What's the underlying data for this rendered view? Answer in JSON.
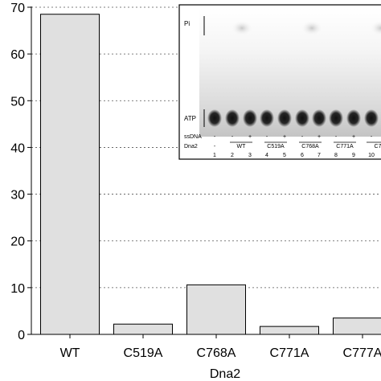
{
  "chart_data": {
    "type": "bar",
    "categories": [
      "WT",
      "C519A",
      "C768A",
      "C771A",
      "C777A"
    ],
    "values": [
      68.5,
      2.2,
      10.6,
      1.7,
      3.5
    ],
    "xlabel": "Dna2",
    "ylabel": "",
    "ylim": [
      0,
      70
    ],
    "yticks": [
      0,
      10,
      20,
      30,
      40,
      50,
      60,
      70
    ],
    "grid": "horizontal dotted",
    "bar_color": "#e0e0e0",
    "bar_edge_color": "#000000"
  },
  "inset": {
    "pi_label": "Pi",
    "atp_label": "ATP",
    "row_ssdna_label": "ssDNA",
    "row_dna2_label": "Dna2",
    "ssdna_signs": [
      "-",
      "-",
      "+",
      "-",
      "+",
      "-",
      "+",
      "-",
      "+",
      "-"
    ],
    "dna2_groups": [
      "-",
      "WT",
      "C519A",
      "C768A",
      "C771A",
      "C7"
    ],
    "lane_numbers": [
      "1",
      "2",
      "3",
      "4",
      "5",
      "6",
      "7",
      "8",
      "9",
      "10"
    ]
  }
}
